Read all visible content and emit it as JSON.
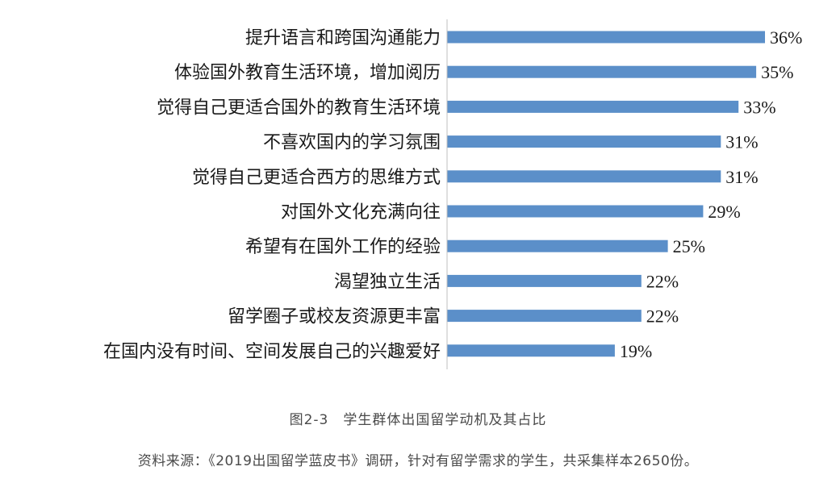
{
  "chart_data": {
    "type": "bar",
    "orientation": "horizontal",
    "categories": [
      "提升语言和跨国沟通能力",
      "体验国外教育生活环境，增加阅历",
      "觉得自己更适合国外的教育生活环境",
      "不喜欢国内的学习氛围",
      "觉得自己更适合西方的思维方式",
      "对国外文化充满向往",
      "希望有在国外工作的经验",
      "渴望独立生活",
      "留学圈子或校友资源更丰富",
      "在国内没有时间、空间发展自己的兴趣爱好"
    ],
    "values": [
      36,
      35,
      33,
      31,
      31,
      29,
      25,
      22,
      22,
      19
    ],
    "value_labels": [
      "36%",
      "35%",
      "33%",
      "31%",
      "31%",
      "29%",
      "25%",
      "22%",
      "22%",
      "19%"
    ],
    "bar_color": "#5b8fc9",
    "xlim": [
      0,
      40
    ],
    "grid": false,
    "legend": "none"
  },
  "caption": "图2-3　学生群体出国留学动机及其占比",
  "source": "资料来源：《2019出国留学蓝皮书》调研，针对有留学需求的学生，共采集样本2650份。"
}
